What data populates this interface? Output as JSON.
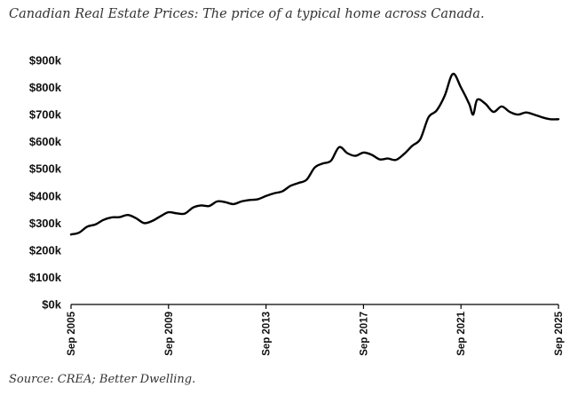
{
  "title": "Canadian Real Estate Prices: The price of a typical home across Canada.",
  "source": "Source: CREA; Better Dwelling.",
  "chart_data": {
    "type": "line",
    "xlabel": "",
    "ylabel": "",
    "grid": false,
    "legend": "none",
    "line_color": "#000000",
    "x_range": [
      "2005-09",
      "2025-09"
    ],
    "ylim": [
      0,
      900000
    ],
    "y_ticks": [
      {
        "value": 900000,
        "label": "$900k"
      },
      {
        "value": 800000,
        "label": "$800k"
      },
      {
        "value": 700000,
        "label": "$700k"
      },
      {
        "value": 600000,
        "label": "$600k"
      },
      {
        "value": 500000,
        "label": "$500k"
      },
      {
        "value": 400000,
        "label": "$400k"
      },
      {
        "value": 300000,
        "label": "$300k"
      },
      {
        "value": 200000,
        "label": "$200k"
      },
      {
        "value": 100000,
        "label": "$100k"
      },
      {
        "value": 0,
        "label": "$0k"
      }
    ],
    "x_ticks": [
      {
        "value": "2005-09",
        "label": "Sep 2005"
      },
      {
        "value": "2009-09",
        "label": "Sep 2009"
      },
      {
        "value": "2013-09",
        "label": "Sep 2013"
      },
      {
        "value": "2017-09",
        "label": "Sep 2017"
      },
      {
        "value": "2021-09",
        "label": "Sep 2021"
      },
      {
        "value": "2025-09",
        "label": "Sep 2025"
      }
    ],
    "series": [
      {
        "x": [
          "2005-09",
          "2006-01",
          "2006-05",
          "2006-09",
          "2007-01",
          "2007-05",
          "2007-09",
          "2008-01",
          "2008-05",
          "2008-09",
          "2009-01",
          "2009-05",
          "2009-09",
          "2010-01",
          "2010-05",
          "2010-09",
          "2011-01",
          "2011-05",
          "2011-09",
          "2012-01",
          "2012-05",
          "2012-09",
          "2013-01",
          "2013-05",
          "2013-09",
          "2014-01",
          "2014-05",
          "2014-09",
          "2015-01",
          "2015-05",
          "2015-09",
          "2016-01",
          "2016-05",
          "2016-09",
          "2017-01",
          "2017-05",
          "2017-09",
          "2018-01",
          "2018-05",
          "2018-09",
          "2019-01",
          "2019-05",
          "2019-09",
          "2020-01",
          "2020-05",
          "2020-09",
          "2021-01",
          "2021-05",
          "2021-09",
          "2022-01",
          "2022-03",
          "2022-05",
          "2022-09",
          "2023-01",
          "2023-05",
          "2023-09",
          "2024-01",
          "2024-05",
          "2024-09",
          "2025-01",
          "2025-05",
          "2025-09"
        ],
        "values": [
          258000,
          265000,
          287000,
          295000,
          312000,
          321000,
          322000,
          330000,
          318000,
          300000,
          308000,
          325000,
          340000,
          336000,
          335000,
          357000,
          365000,
          363000,
          380000,
          377000,
          370000,
          380000,
          385000,
          388000,
          400000,
          410000,
          417000,
          437000,
          448000,
          460000,
          505000,
          520000,
          530000,
          580000,
          558000,
          548000,
          560000,
          552000,
          535000,
          538000,
          533000,
          555000,
          585000,
          610000,
          690000,
          715000,
          770000,
          850000,
          800000,
          740000,
          700000,
          755000,
          740000,
          710000,
          730000,
          710000,
          700000,
          708000,
          700000,
          690000,
          683000,
          683000
        ]
      }
    ]
  }
}
